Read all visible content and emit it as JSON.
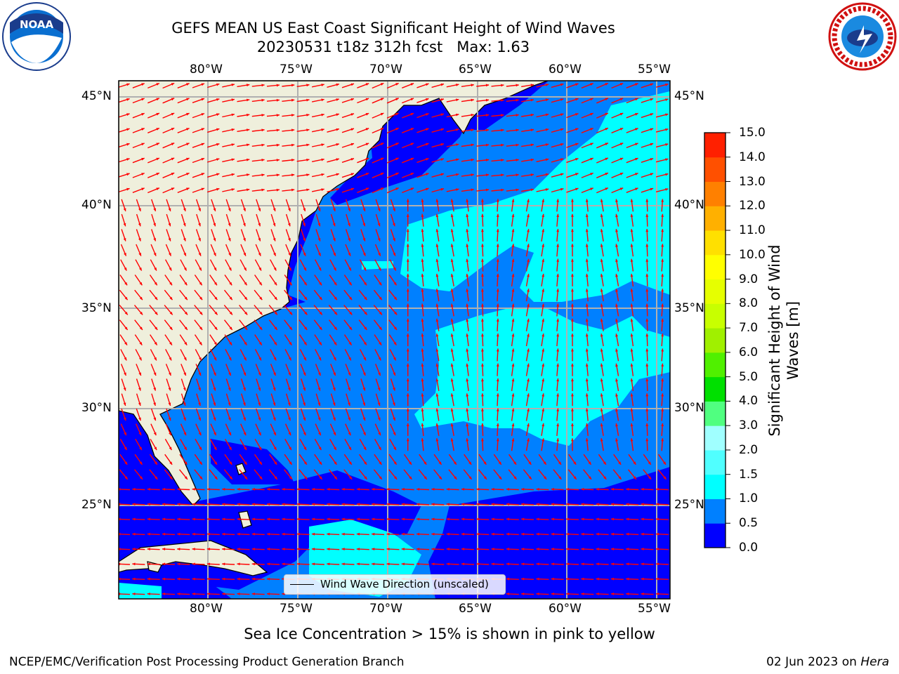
{
  "header": {
    "title_line1": "GEFS MEAN US East Coast Significant Height of Wind Waves",
    "title_line2": "20230531 t18z 312h fcst   Max: 1.63"
  },
  "logos": {
    "left": "noaa-logo",
    "left_text": "NOAA",
    "right": "nws-logo"
  },
  "map": {
    "projection": "lat-lon",
    "lon_range": [
      -85,
      -54.2
    ],
    "lat_range": [
      20.5,
      45.8
    ],
    "top_lon_labels": [
      "80°W",
      "75°W",
      "70°W",
      "65°W",
      "60°W",
      "55°W"
    ],
    "bottom_lon_labels": [
      "80°W",
      "75°W",
      "70°W",
      "65°W",
      "60°W",
      "55°W"
    ],
    "left_lat_labels": [
      "45°N",
      "40°N",
      "35°N",
      "30°N",
      "25°N"
    ],
    "right_lat_labels": [
      "45°N",
      "40°N",
      "35°N",
      "30°N",
      "25°N"
    ],
    "grid": true,
    "ocean_colors": {
      "0.0-0.5": "#0000ff",
      "0.5-1.0": "#0080ff",
      "1.0-1.5": "#00ffff"
    },
    "land_color": "#efefdc",
    "arrow_color": "#ff0000",
    "legend_text": "Wind Wave Direction (unscaled)"
  },
  "colorbar": {
    "label": "Significant Height of Wind Waves [m]",
    "ticks": [
      "0.0",
      "0.5",
      "1.0",
      "1.5",
      "2.0",
      "3.0",
      "4.0",
      "5.0",
      "6.0",
      "7.0",
      "8.0",
      "9.0",
      "10.0",
      "11.0",
      "12.0",
      "13.0",
      "14.0",
      "15.0"
    ],
    "colors": [
      "#0000ff",
      "#0080ff",
      "#00ffff",
      "#50ffff",
      "#a0ffff",
      "#50ff80",
      "#00e000",
      "#50f000",
      "#a0f000",
      "#c8ff00",
      "#e6ff00",
      "#ffff00",
      "#ffe000",
      "#ffb000",
      "#ff8000",
      "#ff5000",
      "#ff2000",
      "#ff0000"
    ]
  },
  "footer": {
    "note": "Sea Ice Concentration > 15% is shown in pink to yellow",
    "left": "NCEP/EMC/Verification Post Processing Product Generation Branch",
    "right_date": "02 Jun 2023 on ",
    "right_host": "Hera"
  }
}
